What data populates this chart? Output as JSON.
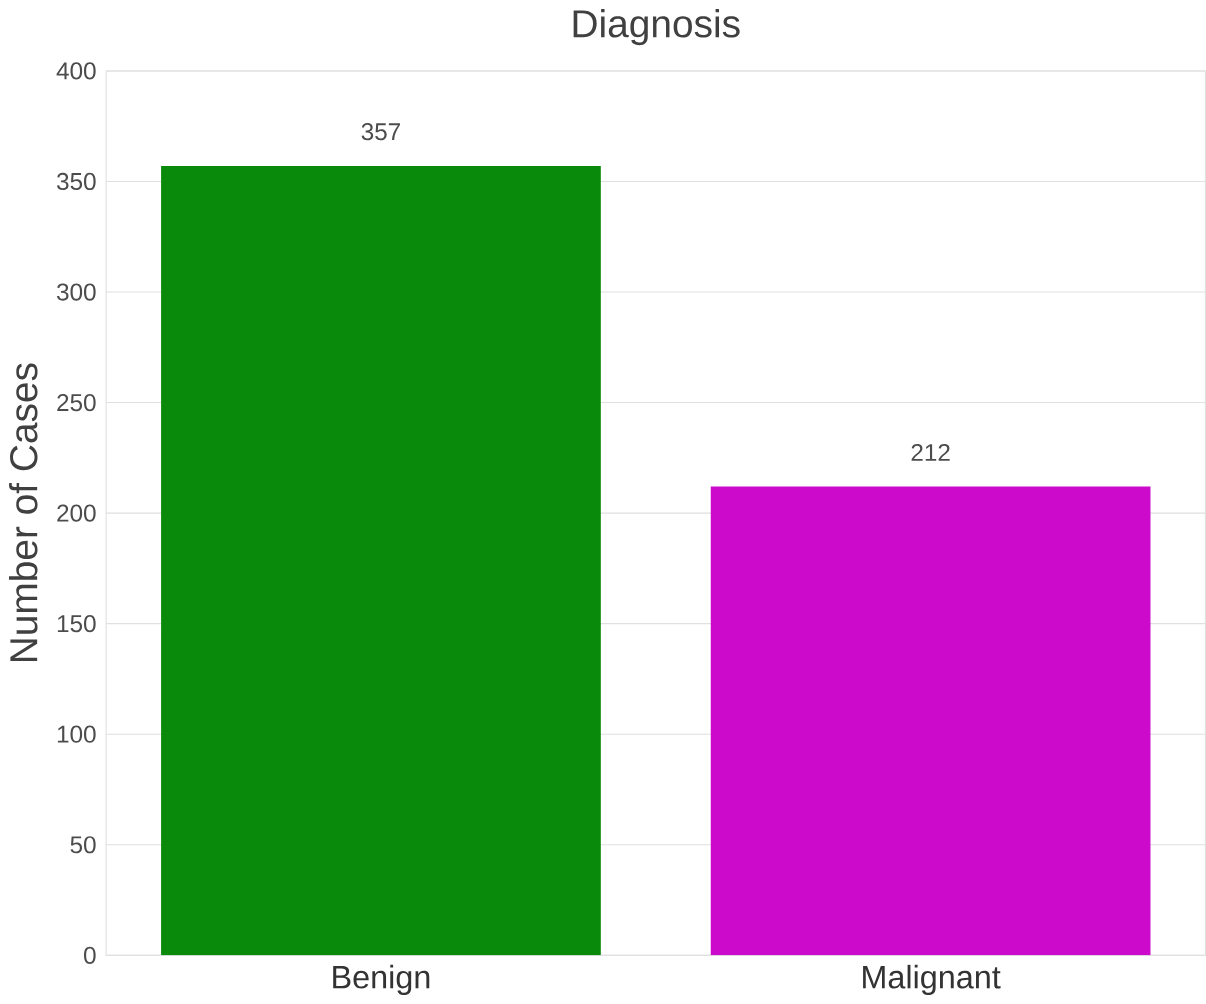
{
  "chart_data": {
    "type": "bar",
    "title": "Diagnosis",
    "ylabel": "Number of Cases",
    "categories": [
      "Benign",
      "Malignant"
    ],
    "values": [
      357,
      212
    ],
    "colors": [
      "#0a8a0a",
      "#cc0acc"
    ],
    "ylim": [
      0,
      400
    ],
    "yticks": [
      0,
      50,
      100,
      150,
      200,
      250,
      300,
      350,
      400
    ],
    "grid": "y",
    "data_labels": true
  }
}
